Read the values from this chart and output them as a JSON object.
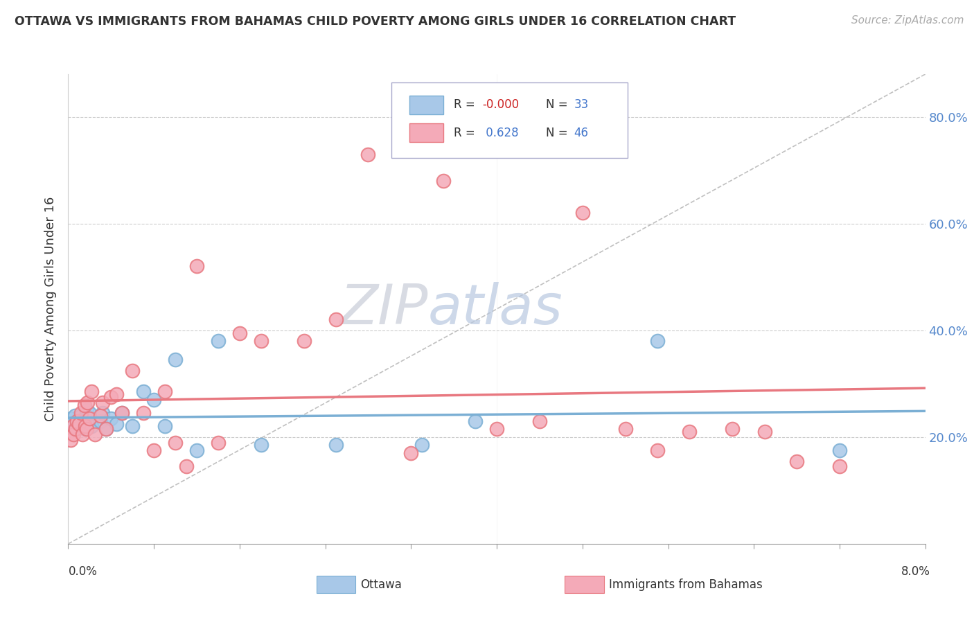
{
  "title": "OTTAWA VS IMMIGRANTS FROM BAHAMAS CHILD POVERTY AMONG GIRLS UNDER 16 CORRELATION CHART",
  "source": "Source: ZipAtlas.com",
  "ylabel": "Child Poverty Among Girls Under 16",
  "xlim": [
    0.0,
    0.08
  ],
  "ylim": [
    0.0,
    0.88
  ],
  "ytick_vals": [
    0.2,
    0.4,
    0.6,
    0.8
  ],
  "ytick_labels": [
    "20.0%",
    "40.0%",
    "60.0%",
    "80.0%"
  ],
  "ottawa_color": "#7bafd4",
  "ottawa_fill": "#a8c8e8",
  "bahamas_color": "#e87880",
  "bahamas_fill": "#f4aab8",
  "ottawa_R": "-0.000",
  "ottawa_N": "33",
  "bahamas_R": "0.628",
  "bahamas_N": "46",
  "watermark_color": "#cdd5e8",
  "background_color": "#ffffff",
  "ottawa_x": [
    0.0003,
    0.0005,
    0.0006,
    0.0007,
    0.0008,
    0.001,
    0.0012,
    0.0013,
    0.0015,
    0.0016,
    0.0017,
    0.0018,
    0.002,
    0.0022,
    0.003,
    0.0032,
    0.0035,
    0.004,
    0.0045,
    0.005,
    0.006,
    0.007,
    0.008,
    0.009,
    0.01,
    0.012,
    0.014,
    0.018,
    0.025,
    0.033,
    0.038,
    0.055,
    0.072
  ],
  "ottawa_y": [
    0.235,
    0.22,
    0.24,
    0.215,
    0.225,
    0.23,
    0.24,
    0.22,
    0.235,
    0.215,
    0.25,
    0.225,
    0.245,
    0.22,
    0.23,
    0.245,
    0.215,
    0.235,
    0.225,
    0.245,
    0.22,
    0.285,
    0.27,
    0.22,
    0.345,
    0.175,
    0.38,
    0.185,
    0.185,
    0.185,
    0.23,
    0.38,
    0.175
  ],
  "bahamas_x": [
    0.0002,
    0.0004,
    0.0005,
    0.0007,
    0.0008,
    0.001,
    0.0012,
    0.0013,
    0.0015,
    0.0016,
    0.0017,
    0.0018,
    0.002,
    0.0022,
    0.0025,
    0.003,
    0.0032,
    0.0035,
    0.004,
    0.0045,
    0.005,
    0.006,
    0.007,
    0.008,
    0.009,
    0.01,
    0.011,
    0.012,
    0.014,
    0.016,
    0.018,
    0.022,
    0.025,
    0.028,
    0.032,
    0.035,
    0.04,
    0.044,
    0.048,
    0.052,
    0.055,
    0.058,
    0.062,
    0.065,
    0.068,
    0.072
  ],
  "bahamas_y": [
    0.195,
    0.22,
    0.205,
    0.215,
    0.23,
    0.225,
    0.245,
    0.205,
    0.26,
    0.22,
    0.215,
    0.265,
    0.235,
    0.285,
    0.205,
    0.24,
    0.265,
    0.215,
    0.275,
    0.28,
    0.245,
    0.325,
    0.245,
    0.175,
    0.285,
    0.19,
    0.145,
    0.52,
    0.19,
    0.395,
    0.38,
    0.38,
    0.42,
    0.73,
    0.17,
    0.68,
    0.215,
    0.23,
    0.62,
    0.215,
    0.175,
    0.21,
    0.215,
    0.21,
    0.155,
    0.145
  ]
}
